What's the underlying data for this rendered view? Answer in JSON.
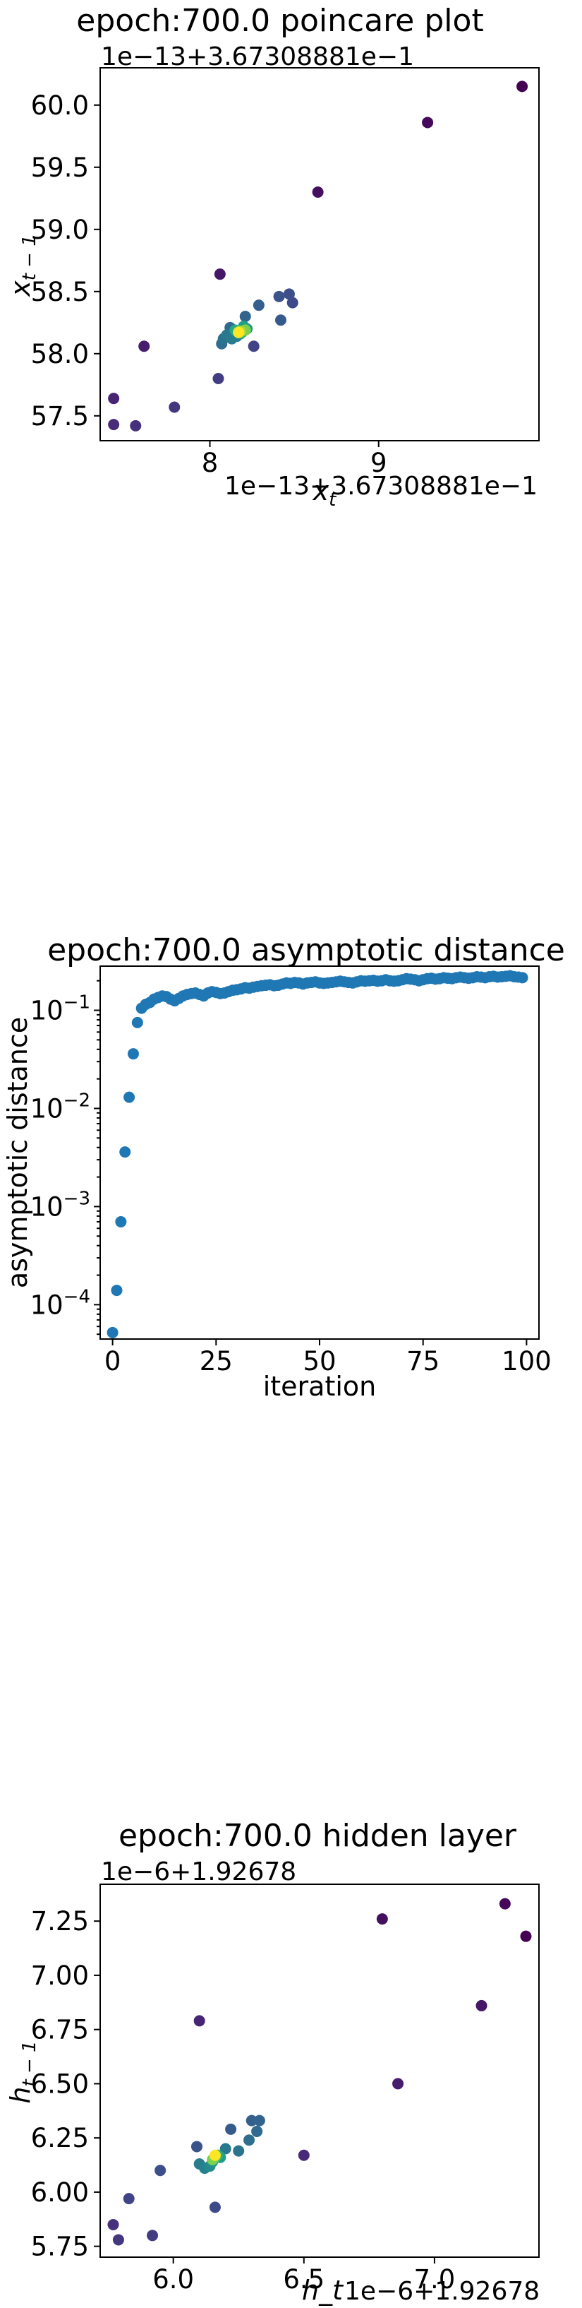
{
  "chart_data": [
    {
      "type": "scatter",
      "title": "epoch:700.0 poincare plot",
      "xlabel": "x_t",
      "ylabel": "x_{t-1}",
      "x_offset_text": "1e−13+3.67308881e−1",
      "y_offset_text": "1e−13+3.67308881e−1",
      "xlim": [
        7.35,
        9.95
      ],
      "ylim": [
        57.3,
        60.3
      ],
      "x_ticks": [
        {
          "v": 8,
          "label": "8"
        },
        {
          "v": 9,
          "label": "9"
        }
      ],
      "y_ticks": [
        {
          "v": 57.5,
          "label": "57.5"
        },
        {
          "v": 58.0,
          "label": "58.0"
        },
        {
          "v": 58.5,
          "label": "58.5"
        },
        {
          "v": 59.0,
          "label": "59.0"
        },
        {
          "v": 59.5,
          "label": "59.5"
        },
        {
          "v": 60.0,
          "label": "60.0"
        }
      ],
      "colormap": "viridis (color encodes iteration order: purple early → yellow late)",
      "points": [
        {
          "x": 9.85,
          "y": 60.15,
          "c": 0.0
        },
        {
          "x": 9.29,
          "y": 59.86,
          "c": 0.02
        },
        {
          "x": 8.64,
          "y": 59.3,
          "c": 0.04
        },
        {
          "x": 8.06,
          "y": 58.64,
          "c": 0.06
        },
        {
          "x": 7.61,
          "y": 58.06,
          "c": 0.08
        },
        {
          "x": 7.43,
          "y": 57.64,
          "c": 0.1
        },
        {
          "x": 7.43,
          "y": 57.43,
          "c": 0.12
        },
        {
          "x": 7.56,
          "y": 57.42,
          "c": 0.14
        },
        {
          "x": 7.79,
          "y": 57.57,
          "c": 0.16
        },
        {
          "x": 8.05,
          "y": 57.8,
          "c": 0.18
        },
        {
          "x": 8.26,
          "y": 58.06,
          "c": 0.2
        },
        {
          "x": 8.49,
          "y": 58.41,
          "c": 0.22
        },
        {
          "x": 8.47,
          "y": 58.48,
          "c": 0.24
        },
        {
          "x": 8.41,
          "y": 58.46,
          "c": 0.26
        },
        {
          "x": 8.42,
          "y": 58.27,
          "c": 0.28
        },
        {
          "x": 8.29,
          "y": 58.39,
          "c": 0.3
        },
        {
          "x": 8.21,
          "y": 58.3,
          "c": 0.32
        },
        {
          "x": 8.12,
          "y": 58.21,
          "c": 0.34
        },
        {
          "x": 8.07,
          "y": 58.08,
          "c": 0.36
        },
        {
          "x": 8.08,
          "y": 58.12,
          "c": 0.38
        },
        {
          "x": 8.1,
          "y": 58.15,
          "c": 0.4
        },
        {
          "x": 8.13,
          "y": 58.12,
          "c": 0.42
        },
        {
          "x": 8.16,
          "y": 58.14,
          "c": 0.44
        },
        {
          "x": 8.18,
          "y": 58.16,
          "c": 0.48
        },
        {
          "x": 8.22,
          "y": 58.2,
          "c": 0.52
        },
        {
          "x": 8.2,
          "y": 58.22,
          "c": 0.56
        },
        {
          "x": 8.15,
          "y": 58.19,
          "c": 0.6
        },
        {
          "x": 8.19,
          "y": 58.17,
          "c": 0.66
        },
        {
          "x": 8.17,
          "y": 58.18,
          "c": 0.72
        },
        {
          "x": 8.21,
          "y": 58.19,
          "c": 0.8
        },
        {
          "x": 8.18,
          "y": 58.18,
          "c": 0.88
        },
        {
          "x": 8.17,
          "y": 58.17,
          "c": 1.0
        }
      ]
    },
    {
      "type": "scatter",
      "title": "epoch:700.0 asymptotic distance",
      "xlabel": "iteration",
      "ylabel": "asymptotic distance",
      "yscale": "log",
      "xlim": [
        -3,
        103
      ],
      "ylim_log10": [
        -4.35,
        -0.55
      ],
      "x_ticks": [
        {
          "v": 0,
          "label": "0"
        },
        {
          "v": 25,
          "label": "25"
        },
        {
          "v": 50,
          "label": "50"
        },
        {
          "v": 75,
          "label": "75"
        },
        {
          "v": 100,
          "label": "100"
        }
      ],
      "y_ticks": [
        {
          "v": -4,
          "base": "10",
          "exp": "−4"
        },
        {
          "v": -3,
          "base": "10",
          "exp": "−3"
        },
        {
          "v": -2,
          "base": "10",
          "exp": "−2"
        },
        {
          "v": -1,
          "base": "10",
          "exp": "−1"
        }
      ],
      "color": "#1f77b4",
      "x": [
        0,
        1,
        2,
        3,
        4,
        5,
        6,
        7,
        8,
        9,
        10,
        11,
        12,
        13,
        14,
        15,
        16,
        17,
        18,
        19,
        20,
        21,
        22,
        23,
        24,
        25,
        26,
        27,
        28,
        29,
        30,
        31,
        32,
        33,
        34,
        35,
        36,
        37,
        38,
        39,
        40,
        41,
        42,
        43,
        44,
        45,
        46,
        47,
        48,
        49,
        50,
        51,
        52,
        53,
        54,
        55,
        56,
        57,
        58,
        59,
        60,
        61,
        62,
        63,
        64,
        65,
        66,
        67,
        68,
        69,
        70,
        71,
        72,
        73,
        74,
        75,
        76,
        77,
        78,
        79,
        80,
        81,
        82,
        83,
        84,
        85,
        86,
        87,
        88,
        89,
        90,
        91,
        92,
        93,
        94,
        95,
        96,
        97,
        98,
        99
      ],
      "y": [
        5.2e-05,
        0.00014,
        0.0007,
        0.0036,
        0.013,
        0.036,
        0.075,
        0.105,
        0.115,
        0.12,
        0.13,
        0.135,
        0.14,
        0.138,
        0.13,
        0.125,
        0.132,
        0.14,
        0.145,
        0.148,
        0.15,
        0.145,
        0.14,
        0.15,
        0.155,
        0.152,
        0.148,
        0.15,
        0.155,
        0.16,
        0.162,
        0.165,
        0.17,
        0.168,
        0.172,
        0.175,
        0.178,
        0.18,
        0.182,
        0.178,
        0.18,
        0.185,
        0.19,
        0.188,
        0.192,
        0.19,
        0.185,
        0.19,
        0.192,
        0.195,
        0.19,
        0.188,
        0.19,
        0.192,
        0.195,
        0.198,
        0.195,
        0.192,
        0.19,
        0.195,
        0.2,
        0.198,
        0.2,
        0.202,
        0.198,
        0.2,
        0.205,
        0.2,
        0.198,
        0.2,
        0.205,
        0.21,
        0.208,
        0.205,
        0.2,
        0.205,
        0.21,
        0.212,
        0.208,
        0.21,
        0.215,
        0.212,
        0.21,
        0.215,
        0.218,
        0.215,
        0.212,
        0.215,
        0.22,
        0.218,
        0.215,
        0.22,
        0.222,
        0.218,
        0.22,
        0.222,
        0.225,
        0.22,
        0.218,
        0.215
      ]
    },
    {
      "type": "scatter",
      "title": "epoch:700.0 hidden layer",
      "xlabel": "h_t",
      "ylabel": "h_{t-1}",
      "x_offset_text": "1e−6+1.92678",
      "y_offset_text": "1e−6+1.92678",
      "xlim": [
        5.72,
        7.4
      ],
      "ylim": [
        5.7,
        7.42
      ],
      "x_ticks": [
        {
          "v": 6.0,
          "label": "6.0"
        },
        {
          "v": 6.5,
          "label": "6.5"
        },
        {
          "v": 7.0,
          "label": "7.0"
        }
      ],
      "y_ticks": [
        {
          "v": 5.75,
          "label": "5.75"
        },
        {
          "v": 6.0,
          "label": "6.00"
        },
        {
          "v": 6.25,
          "label": "6.25"
        },
        {
          "v": 6.5,
          "label": "6.50"
        },
        {
          "v": 6.75,
          "label": "6.75"
        },
        {
          "v": 7.0,
          "label": "7.00"
        },
        {
          "v": 7.25,
          "label": "7.25"
        }
      ],
      "colormap": "viridis (color encodes iteration order: purple early → yellow late)",
      "points": [
        {
          "x": 7.35,
          "y": 7.18,
          "c": 0.0
        },
        {
          "x": 7.27,
          "y": 7.33,
          "c": 0.02
        },
        {
          "x": 6.8,
          "y": 7.26,
          "c": 0.04
        },
        {
          "x": 7.18,
          "y": 6.86,
          "c": 0.06
        },
        {
          "x": 6.86,
          "y": 6.5,
          "c": 0.08
        },
        {
          "x": 6.1,
          "y": 6.79,
          "c": 0.1
        },
        {
          "x": 6.5,
          "y": 6.17,
          "c": 0.12
        },
        {
          "x": 5.77,
          "y": 5.85,
          "c": 0.14
        },
        {
          "x": 5.79,
          "y": 5.78,
          "c": 0.16
        },
        {
          "x": 5.92,
          "y": 5.8,
          "c": 0.18
        },
        {
          "x": 5.83,
          "y": 5.97,
          "c": 0.2
        },
        {
          "x": 6.16,
          "y": 5.93,
          "c": 0.22
        },
        {
          "x": 5.95,
          "y": 6.1,
          "c": 0.24
        },
        {
          "x": 6.09,
          "y": 6.21,
          "c": 0.26
        },
        {
          "x": 6.22,
          "y": 6.29,
          "c": 0.28
        },
        {
          "x": 6.3,
          "y": 6.33,
          "c": 0.3
        },
        {
          "x": 6.33,
          "y": 6.33,
          "c": 0.32
        },
        {
          "x": 6.32,
          "y": 6.28,
          "c": 0.34
        },
        {
          "x": 6.29,
          "y": 6.24,
          "c": 0.36
        },
        {
          "x": 6.25,
          "y": 6.19,
          "c": 0.38
        },
        {
          "x": 6.2,
          "y": 6.2,
          "c": 0.4
        },
        {
          "x": 6.1,
          "y": 6.13,
          "c": 0.42
        },
        {
          "x": 6.12,
          "y": 6.11,
          "c": 0.44
        },
        {
          "x": 6.14,
          "y": 6.12,
          "c": 0.48
        },
        {
          "x": 6.15,
          "y": 6.14,
          "c": 0.52
        },
        {
          "x": 6.18,
          "y": 6.16,
          "c": 0.56
        },
        {
          "x": 6.17,
          "y": 6.17,
          "c": 0.62
        },
        {
          "x": 6.16,
          "y": 6.16,
          "c": 0.7
        },
        {
          "x": 6.15,
          "y": 6.15,
          "c": 0.8
        },
        {
          "x": 6.16,
          "y": 6.17,
          "c": 1.0
        }
      ]
    }
  ]
}
